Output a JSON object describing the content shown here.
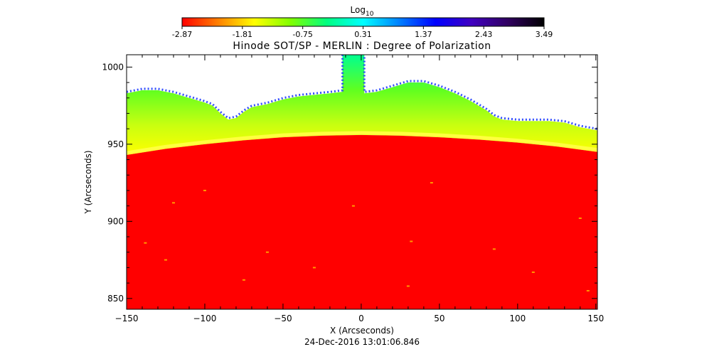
{
  "chart_data": {
    "type": "heatmap",
    "title": "Hinode SOT/SP - MERLIN : Degree of Polarization",
    "xlabel": "X (Arcseconds)",
    "ylabel": "Y (Arcseconds)",
    "timestamp": "24-Dec-2016 13:01:06.846",
    "colorbar": {
      "label_base": "Log",
      "label_sub": "10",
      "range": [
        -2.87,
        3.49
      ],
      "ticks": [
        "-2.87",
        "-1.81",
        "-0.75",
        "0.31",
        "1.37",
        "2.43",
        "3.49"
      ],
      "stops": [
        "#ff0000",
        "#ff8000",
        "#ffff00",
        "#80ff00",
        "#00ff80",
        "#00ffff",
        "#0080ff",
        "#0000ff",
        "#4000c0",
        "#300060",
        "#000000"
      ]
    },
    "xlim": [
      -150,
      151
    ],
    "ylim": [
      843,
      1008
    ],
    "xticks": [
      {
        "value": -150,
        "label": "−150"
      },
      {
        "value": -100,
        "label": "−100"
      },
      {
        "value": -50,
        "label": "−50"
      },
      {
        "value": 0,
        "label": "0"
      },
      {
        "value": 50,
        "label": "50"
      },
      {
        "value": 100,
        "label": "100"
      },
      {
        "value": 150,
        "label": "150"
      }
    ],
    "yticks": [
      {
        "value": 850,
        "label": "850"
      },
      {
        "value": 900,
        "label": "900"
      },
      {
        "value": 950,
        "label": "950"
      },
      {
        "value": 1000,
        "label": "1000"
      }
    ],
    "limb_profile": [
      {
        "x": -150,
        "y": 943
      },
      {
        "x": -125,
        "y": 947
      },
      {
        "x": -100,
        "y": 950
      },
      {
        "x": -75,
        "y": 952.5
      },
      {
        "x": -50,
        "y": 954.5
      },
      {
        "x": -25,
        "y": 955.5
      },
      {
        "x": 0,
        "y": 956
      },
      {
        "x": 25,
        "y": 955.5
      },
      {
        "x": 50,
        "y": 954.5
      },
      {
        "x": 75,
        "y": 953
      },
      {
        "x": 100,
        "y": 951
      },
      {
        "x": 125,
        "y": 948.5
      },
      {
        "x": 151,
        "y": 945
      }
    ],
    "signal_edge": [
      {
        "x": -150,
        "y": 983
      },
      {
        "x": -140,
        "y": 985
      },
      {
        "x": -130,
        "y": 985
      },
      {
        "x": -120,
        "y": 983
      },
      {
        "x": -110,
        "y": 980
      },
      {
        "x": -100,
        "y": 977
      },
      {
        "x": -95,
        "y": 975
      },
      {
        "x": -90,
        "y": 970
      },
      {
        "x": -85,
        "y": 966
      },
      {
        "x": -80,
        "y": 967
      },
      {
        "x": -75,
        "y": 971
      },
      {
        "x": -70,
        "y": 974
      },
      {
        "x": -60,
        "y": 976
      },
      {
        "x": -50,
        "y": 979
      },
      {
        "x": -40,
        "y": 981
      },
      {
        "x": -30,
        "y": 982
      },
      {
        "x": -20,
        "y": 983
      },
      {
        "x": -12,
        "y": 984
      },
      {
        "x": -12,
        "y": 1008
      },
      {
        "x": 2,
        "y": 1008
      },
      {
        "x": 2,
        "y": 983
      },
      {
        "x": 10,
        "y": 984
      },
      {
        "x": 20,
        "y": 987
      },
      {
        "x": 30,
        "y": 990
      },
      {
        "x": 40,
        "y": 990
      },
      {
        "x": 50,
        "y": 987
      },
      {
        "x": 60,
        "y": 983
      },
      {
        "x": 70,
        "y": 978
      },
      {
        "x": 80,
        "y": 972
      },
      {
        "x": 85,
        "y": 968
      },
      {
        "x": 90,
        "y": 966
      },
      {
        "x": 100,
        "y": 965
      },
      {
        "x": 110,
        "y": 965
      },
      {
        "x": 120,
        "y": 965
      },
      {
        "x": 130,
        "y": 964
      },
      {
        "x": 140,
        "y": 961
      },
      {
        "x": 151,
        "y": 959
      }
    ],
    "bright_points": [
      {
        "x": -120,
        "y": 912
      },
      {
        "x": -5,
        "y": 910
      },
      {
        "x": -138,
        "y": 886
      },
      {
        "x": -60,
        "y": 880
      },
      {
        "x": 32,
        "y": 887
      },
      {
        "x": 85,
        "y": 882
      },
      {
        "x": 30,
        "y": 858
      },
      {
        "x": 140,
        "y": 902
      },
      {
        "x": -100,
        "y": 920
      },
      {
        "x": 45,
        "y": 925
      },
      {
        "x": -30,
        "y": 870
      },
      {
        "x": 110,
        "y": 867
      },
      {
        "x": -75,
        "y": 862
      },
      {
        "x": 145,
        "y": 855
      },
      {
        "x": -125,
        "y": 875
      }
    ]
  }
}
